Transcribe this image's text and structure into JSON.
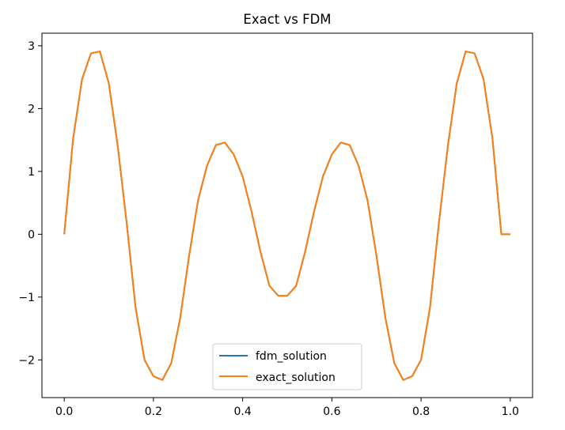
{
  "chart_data": {
    "type": "line",
    "title": "Exact vs FDM",
    "xlabel": "",
    "ylabel": "",
    "xlim": [
      -0.05,
      1.05
    ],
    "ylim": [
      -2.6,
      3.2
    ],
    "xticks": [
      0.0,
      0.2,
      0.4,
      0.6,
      0.8,
      1.0
    ],
    "xtick_labels": [
      "0.0",
      "0.2",
      "0.4",
      "0.6",
      "0.8",
      "1.0"
    ],
    "yticks": [
      -2,
      -1,
      0,
      1,
      2,
      3
    ],
    "ytick_labels": [
      "−2",
      "−1",
      "0",
      "1",
      "2",
      "3"
    ],
    "grid": false,
    "legend_position": "lower center",
    "series": [
      {
        "name": "fdm_solution",
        "color": "#1f77b4",
        "x": [
          0.0,
          0.02,
          0.04,
          0.06,
          0.08,
          0.1,
          0.12,
          0.14,
          0.16,
          0.18,
          0.2,
          0.22,
          0.24,
          0.26,
          0.28,
          0.3,
          0.32,
          0.34,
          0.36,
          0.38,
          0.4,
          0.42,
          0.44,
          0.46,
          0.48,
          0.5,
          0.52,
          0.54,
          0.56,
          0.58,
          0.6,
          0.62,
          0.64,
          0.66,
          0.68,
          0.7,
          0.72,
          0.74,
          0.76,
          0.78,
          0.8,
          0.82,
          0.84,
          0.86,
          0.88,
          0.9,
          0.92,
          0.94,
          0.96,
          0.98,
          1.0
        ],
        "y": [
          0.0,
          1.53,
          2.47,
          2.88,
          2.91,
          2.4,
          1.4,
          0.18,
          -1.17,
          -2.0,
          -2.26,
          -2.32,
          -2.05,
          -1.33,
          -0.34,
          0.54,
          1.09,
          1.42,
          1.46,
          1.27,
          0.92,
          0.36,
          -0.28,
          -0.82,
          -0.98,
          -0.98,
          -0.82,
          -0.28,
          0.36,
          0.92,
          1.27,
          1.46,
          1.42,
          1.09,
          0.54,
          -0.34,
          -1.33,
          -2.05,
          -2.32,
          -2.26,
          -2.0,
          -1.17,
          0.18,
          1.4,
          2.4,
          2.91,
          2.88,
          2.47,
          1.53,
          0.0,
          0.0
        ]
      },
      {
        "name": "exact_solution",
        "color": "#ff7f0e",
        "x": [
          0.0,
          0.02,
          0.04,
          0.06,
          0.08,
          0.1,
          0.12,
          0.14,
          0.16,
          0.18,
          0.2,
          0.22,
          0.24,
          0.26,
          0.28,
          0.3,
          0.32,
          0.34,
          0.36,
          0.38,
          0.4,
          0.42,
          0.44,
          0.46,
          0.48,
          0.5,
          0.52,
          0.54,
          0.56,
          0.58,
          0.6,
          0.62,
          0.64,
          0.66,
          0.68,
          0.7,
          0.72,
          0.74,
          0.76,
          0.78,
          0.8,
          0.82,
          0.84,
          0.86,
          0.88,
          0.9,
          0.92,
          0.94,
          0.96,
          0.98,
          1.0
        ],
        "y": [
          0.0,
          1.53,
          2.47,
          2.88,
          2.91,
          2.4,
          1.4,
          0.18,
          -1.17,
          -2.0,
          -2.26,
          -2.32,
          -2.05,
          -1.33,
          -0.34,
          0.54,
          1.09,
          1.42,
          1.46,
          1.27,
          0.92,
          0.36,
          -0.28,
          -0.82,
          -0.98,
          -0.98,
          -0.82,
          -0.28,
          0.36,
          0.92,
          1.27,
          1.46,
          1.42,
          1.09,
          0.54,
          -0.34,
          -1.33,
          -2.05,
          -2.32,
          -2.26,
          -2.0,
          -1.17,
          0.18,
          1.4,
          2.4,
          2.91,
          2.88,
          2.47,
          1.53,
          0.0,
          0.0
        ]
      }
    ]
  }
}
